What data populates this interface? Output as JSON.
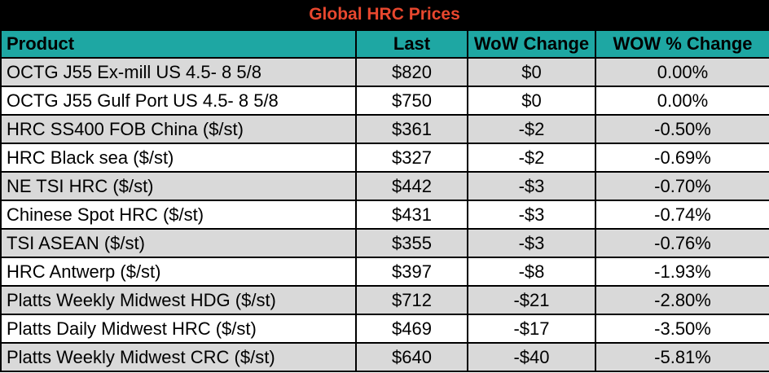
{
  "title": "Global HRC Prices",
  "columns": {
    "product": "Product",
    "last": "Last",
    "wow": "WoW Change",
    "wowpct": "WOW % Change"
  },
  "rows": [
    {
      "product": "OCTG J55 Ex-mill US 4.5- 8 5/8",
      "last": "$820",
      "wow": "$0",
      "wowpct": "0.00%"
    },
    {
      "product": "OCTG J55 Gulf Port US 4.5- 8 5/8",
      "last": "$750",
      "wow": "$0",
      "wowpct": "0.00%"
    },
    {
      "product": "HRC SS400 FOB China ($/st)",
      "last": "$361",
      "wow": "-$2",
      "wowpct": "-0.50%"
    },
    {
      "product": "HRC Black sea ($/st)",
      "last": "$327",
      "wow": "-$2",
      "wowpct": "-0.69%"
    },
    {
      "product": "NE TSI HRC ($/st)",
      "last": "$442",
      "wow": "-$3",
      "wowpct": "-0.70%"
    },
    {
      "product": "Chinese Spot HRC ($/st)",
      "last": "$431",
      "wow": "-$3",
      "wowpct": "-0.74%"
    },
    {
      "product": "TSI ASEAN ($/st)",
      "last": "$355",
      "wow": "-$3",
      "wowpct": "-0.76%"
    },
    {
      "product": "HRC Antwerp ($/st)",
      "last": "$397",
      "wow": "-$8",
      "wowpct": "-1.93%"
    },
    {
      "product": "Platts Weekly Midwest HDG ($/st)",
      "last": "$712",
      "wow": "-$21",
      "wowpct": "-2.80%"
    },
    {
      "product": "Platts Daily Midwest HRC ($/st)",
      "last": "$469",
      "wow": "-$17",
      "wowpct": "-3.50%"
    },
    {
      "product": "Platts Weekly Midwest CRC ($/st)",
      "last": "$640",
      "wow": "-$40",
      "wowpct": "-5.81%"
    }
  ],
  "colors": {
    "title_bg": "#000000",
    "title_text": "#e8472e",
    "header_bg": "#1ea7a3",
    "row_shade": "#d9d9d9",
    "row_plain": "#ffffff"
  }
}
